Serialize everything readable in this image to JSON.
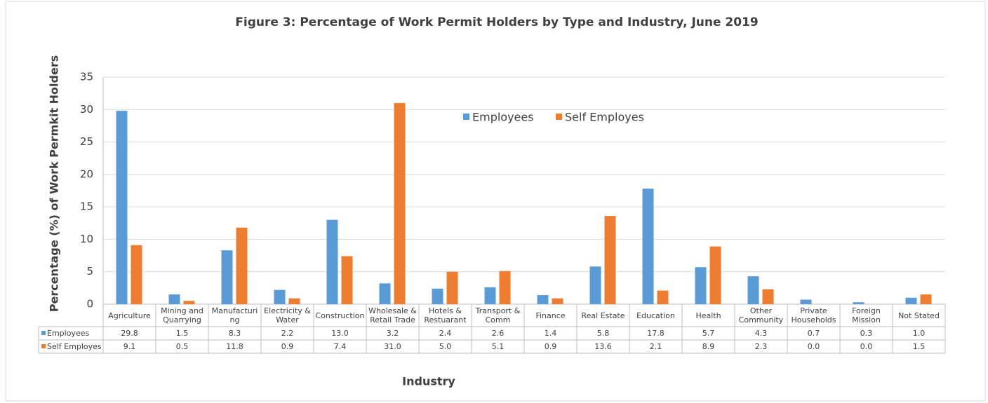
{
  "chart_data": {
    "type": "bar",
    "title": "Figure 3: Percentage of Work Permit Holders by Type and Industry, June 2019",
    "y_label": "Percentage (%) of Work Permkit Holders",
    "x_label": "Industry",
    "categories": [
      "Agriculture",
      "Mining and Quarrying",
      "Manufacturing",
      "Electricity & Water",
      "Construction",
      "Wholesale & Retail Trade",
      "Hotels & Restuarant",
      "Transport & Comm",
      "Finance",
      "Real Estate",
      "Education",
      "Health",
      "Other Community",
      "Private Households",
      "Foreign Mission",
      "Not Stated"
    ],
    "series": [
      {
        "name": "Employees",
        "color": "#5b9bd5",
        "values": [
          29.8,
          1.5,
          8.3,
          2.2,
          13.0,
          3.2,
          2.4,
          2.6,
          1.4,
          5.8,
          17.8,
          5.7,
          4.3,
          0.7,
          0.3,
          1.0
        ],
        "value_labels": [
          "29.8",
          "1.5",
          "8.3",
          "2.2",
          "13.0",
          "3.2",
          "2.4",
          "2.6",
          "1.4",
          "5.8",
          "17.8",
          "5.7",
          "4.3",
          "0.7",
          "0.3",
          "1.0"
        ]
      },
      {
        "name": "Self Employes",
        "color": "#ed7d31",
        "values": [
          9.1,
          0.5,
          11.8,
          0.9,
          7.4,
          31.0,
          5.0,
          5.1,
          0.9,
          13.6,
          2.1,
          8.9,
          2.3,
          0.0,
          0.0,
          1.5
        ],
        "value_labels": [
          "9.1",
          "0.5",
          "11.8",
          "0.9",
          "7.4",
          "31.0",
          "5.0",
          "5.1",
          "0.9",
          "13.6",
          "2.1",
          "8.9",
          "2.3",
          "0.0",
          "0.0",
          "1.5"
        ]
      }
    ],
    "ylim": [
      0,
      35
    ],
    "yticks": [
      0,
      5,
      10,
      15,
      20,
      25,
      30,
      35
    ],
    "grid": true
  }
}
